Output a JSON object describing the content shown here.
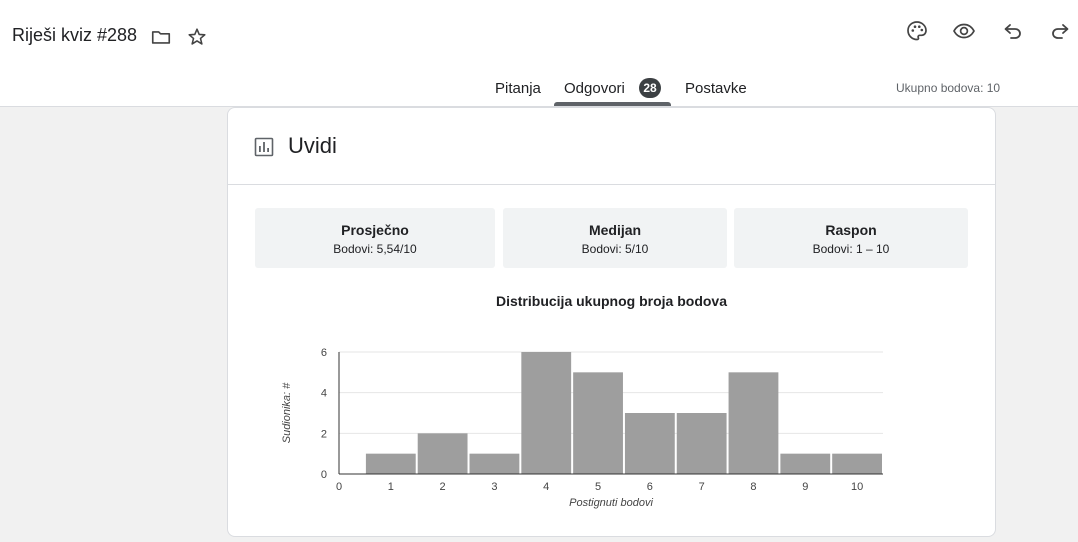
{
  "header": {
    "title": "Riješi kviz #288",
    "icons": [
      "folder-icon",
      "star-icon",
      "palette-icon",
      "eye-icon",
      "undo-icon",
      "redo-icon"
    ]
  },
  "tabs": {
    "pitanja": "Pitanja",
    "odgovori": "Odgovori",
    "odgovori_count": "28",
    "postavke": "Postavke",
    "active": "Odgovori",
    "total_points": "Ukupno bodova: 10"
  },
  "insights": {
    "title": "Uvidi",
    "stats": {
      "average": {
        "label": "Prosječno",
        "value": "Bodovi: 5,54/10"
      },
      "median": {
        "label": "Medijan",
        "value": "Bodovi: 5/10"
      },
      "range": {
        "label": "Raspon",
        "value": "Bodovi: 1 – 10"
      }
    }
  },
  "chart_data": {
    "type": "bar",
    "title": "Distribucija ukupnog broja bodova",
    "xlabel": "Postignuti bodovi",
    "ylabel": "Sudionika: #",
    "x_ticks": [
      "0",
      "1",
      "2",
      "3",
      "4",
      "5",
      "6",
      "7",
      "8",
      "9",
      "10"
    ],
    "y_ticks": [
      "0",
      "2",
      "4",
      "6"
    ],
    "ylim": [
      0,
      6
    ],
    "categories": [
      "1",
      "2",
      "3",
      "4",
      "5",
      "6",
      "7",
      "8",
      "9",
      "10"
    ],
    "values": [
      1,
      2,
      1,
      6,
      5,
      3,
      3,
      5,
      1,
      1
    ],
    "bar_color": "#9e9e9e",
    "grid": true
  }
}
